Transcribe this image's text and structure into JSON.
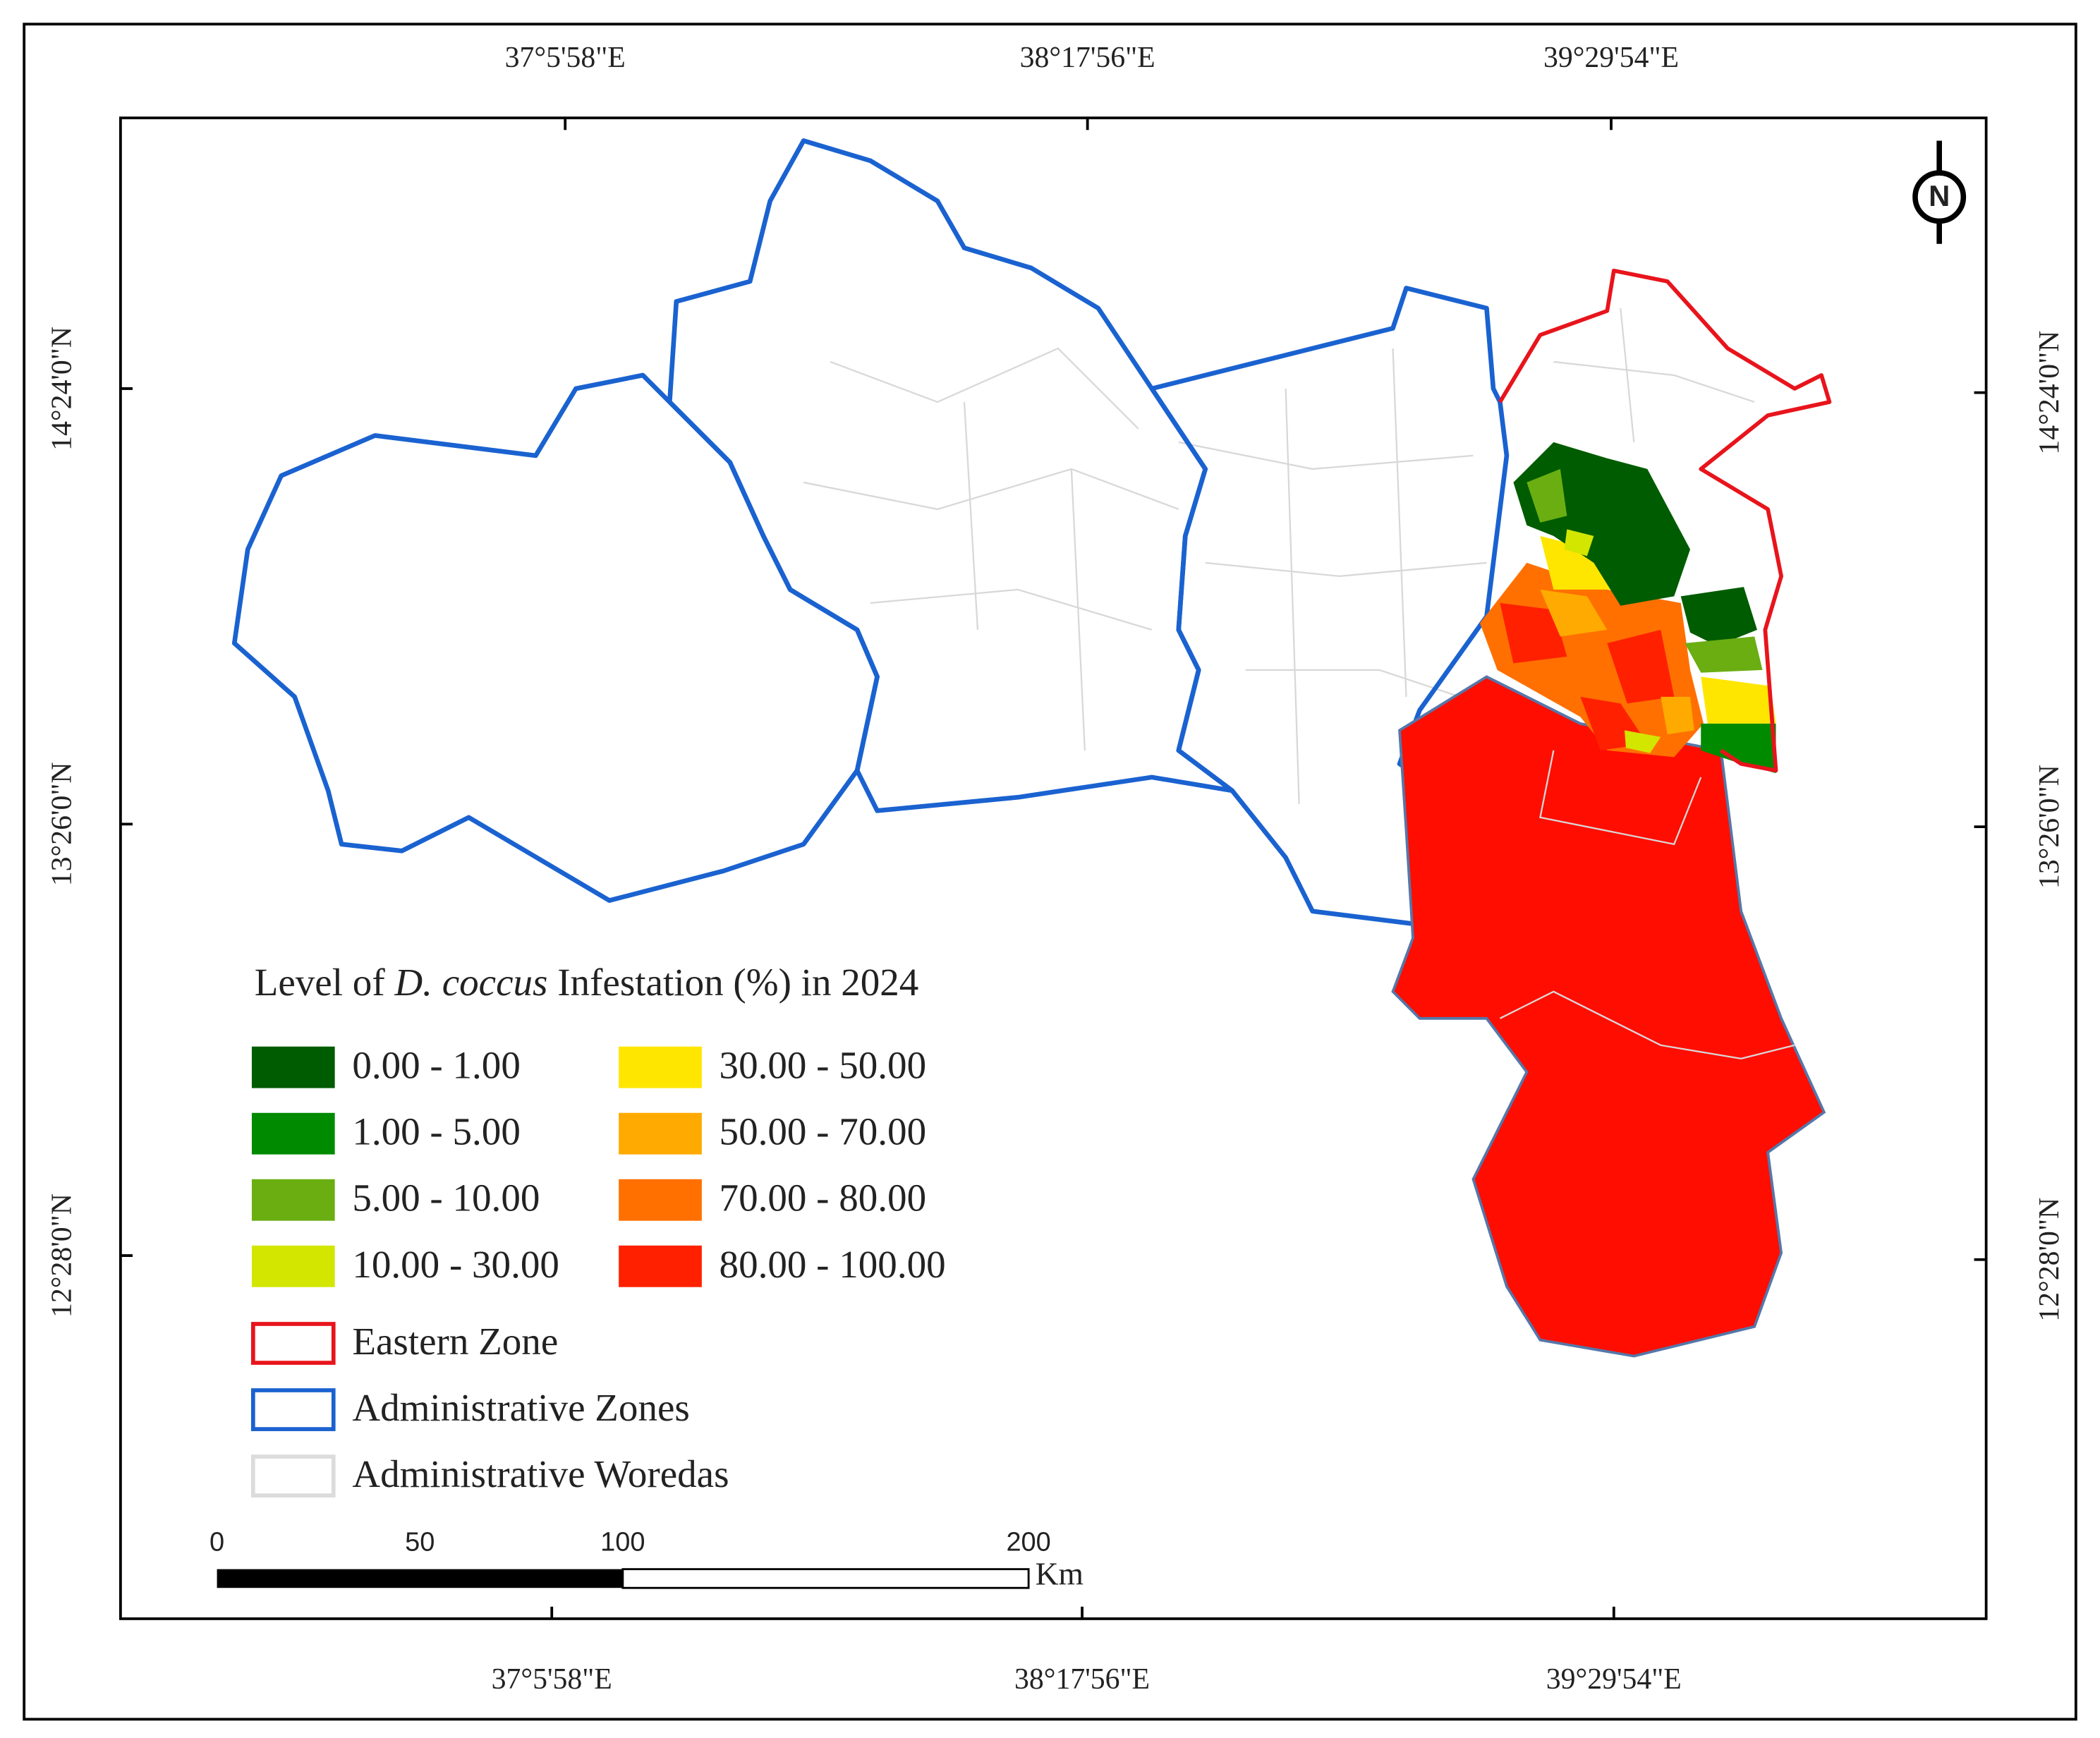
{
  "map": {
    "north": "N",
    "axes": {
      "top": [
        "37°5'58\"E",
        "38°17'56\"E",
        "39°29'54\"E"
      ],
      "bottom": [
        "37°5'58\"E",
        "38°17'56\"E",
        "39°29'54\"E"
      ],
      "left": [
        "14°24'0\"N",
        "13°26'0\"N",
        "12°28'0\"N"
      ],
      "right": [
        "14°24'0\"N",
        "13°26'0\"N",
        "12°28'0\"N"
      ]
    },
    "legend": {
      "title_before": "Level of",
      "title_italic": "D. coccus",
      "title_after": "Infestation (%) in 2024",
      "classes": [
        {
          "label": "0.00 - 1.00",
          "color": "#005c00"
        },
        {
          "label": "1.00 - 5.00",
          "color": "#008a00"
        },
        {
          "label": "5.00 - 10.00",
          "color": "#6aae12"
        },
        {
          "label": "10.00 - 30.00",
          "color": "#d2e600"
        },
        {
          "label": "30.00 - 50.00",
          "color": "#ffe600"
        },
        {
          "label": "50.00 - 70.00",
          "color": "#ffaa00"
        },
        {
          "label": "70.00 - 80.00",
          "color": "#ff7000"
        },
        {
          "label": "80.00 - 100.00",
          "color": "#ff2000"
        }
      ],
      "layers": [
        {
          "label": "Eastern Zone",
          "color": "#e8141c"
        },
        {
          "label": "Administrative Zones",
          "color": "#1a62d0"
        },
        {
          "label": "Administrative Woredas",
          "color": "#dcdcdc"
        }
      ]
    },
    "scale_bar": {
      "labels": [
        0,
        50,
        100,
        200
      ],
      "unit": "Km"
    }
  }
}
